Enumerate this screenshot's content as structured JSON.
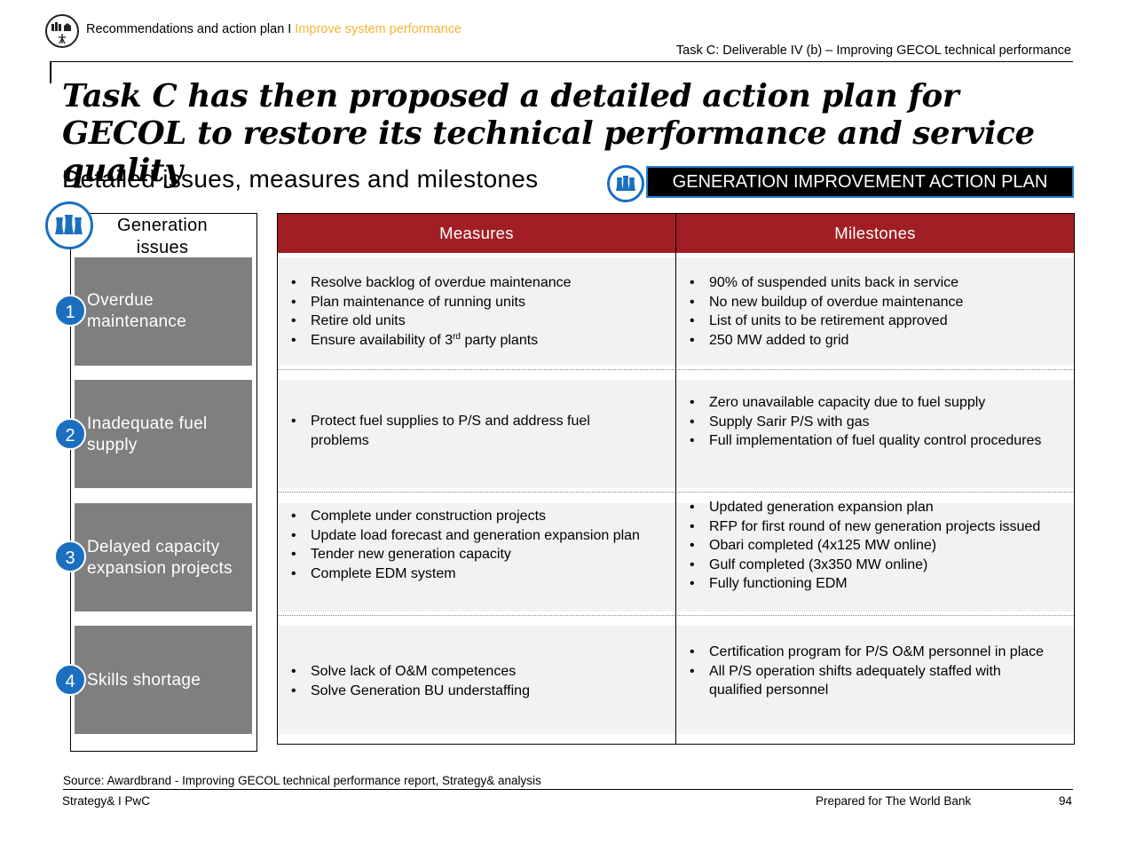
{
  "header": {
    "section": "Recommendations and action plan",
    "separator": "I",
    "topic": "Improve system performance",
    "task_ref": "Task C: Deliverable IV (b) – Improving GECOL technical performance",
    "icon": "power-plant-icon",
    "accent_color": "#f5b335"
  },
  "title": "Task C has then proposed a detailed action plan for GECOL to restore its technical performance and service quality",
  "subtitle": "Detailed issues, measures and milestones",
  "badge": {
    "label": "GENERATION IMPROVEMENT ACTION PLAN",
    "icon": "cooling-towers-icon",
    "color": "#1a6fc0"
  },
  "left": {
    "heading": "Generation issues",
    "icon": "cooling-towers-icon"
  },
  "table": {
    "header_color": "#a11f24",
    "columns": [
      "Measures",
      "Milestones"
    ],
    "rows": [
      {
        "num": "1",
        "issue": "Overdue maintenance",
        "measures": [
          "Resolve backlog of overdue maintenance",
          "Plan maintenance of running units",
          "Retire old units",
          {
            "pre": "Ensure availability of 3",
            "sup": "rd",
            "post": " party plants"
          }
        ],
        "milestones": [
          "90% of suspended units back in service",
          "No new buildup of overdue maintenance",
          "List of units to be retirement approved",
          "250 MW added to grid"
        ]
      },
      {
        "num": "2",
        "issue": "Inadequate fuel supply",
        "measures": [
          "Protect fuel supplies to P/S and address fuel problems"
        ],
        "milestones": [
          "Zero unavailable capacity due to fuel supply",
          "Supply Sarir P/S with gas",
          "Full implementation of fuel quality control procedures"
        ]
      },
      {
        "num": "3",
        "issue": "Delayed capacity expansion projects",
        "measures": [
          "Complete under construction projects",
          "Update load forecast and generation expansion plan",
          "Tender new generation capacity",
          "Complete EDM system"
        ],
        "milestones": [
          "Updated generation expansion plan",
          "RFP for first round of new generation projects issued",
          "Obari completed (4x125 MW online)",
          "Gulf completed (3x350 MW online)",
          "Fully functioning EDM"
        ]
      },
      {
        "num": "4",
        "issue": "Skills shortage",
        "measures": [
          "Solve lack of O&M competences",
          "Solve Generation BU understaffing"
        ],
        "milestones": [
          "Certification program for P/S O&M personnel in place",
          "All P/S operation shifts adequately staffed with qualified personnel"
        ]
      }
    ]
  },
  "footer": {
    "source": "Source: Awardbrand - Improving GECOL technical performance report, Strategy& analysis",
    "firm": "Strategy& I PwC",
    "prepared_for": "Prepared for The World Bank",
    "page": "94"
  }
}
